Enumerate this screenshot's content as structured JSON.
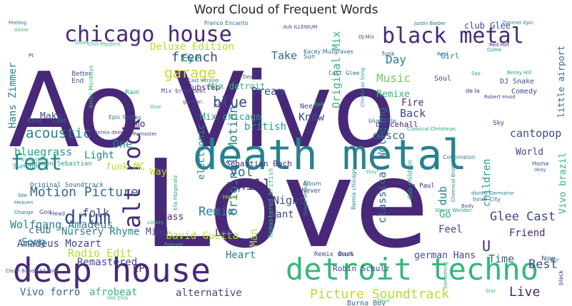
{
  "chart_data": {
    "type": "wordcloud",
    "title": "Word Cloud of Frequent Words",
    "palette": [
      "#440154",
      "#482878",
      "#3e4a89",
      "#31688e",
      "#26828e",
      "#1f9e89",
      "#35b779",
      "#6ece58",
      "#b5de2b",
      "#d2d62b"
    ],
    "words": [
      "Ao Vivo",
      "Love",
      "death metal",
      "deep house",
      "detroit techno",
      "chicago house",
      "black metal",
      "alt rock",
      "Motion Picture",
      "Picture Soundtrack",
      "acoustic",
      "feat",
      "Original Motion",
      "garage",
      "drum",
      "french",
      "chill",
      "Deluxe Edition",
      "Remix",
      "blue",
      "Vol",
      "Live",
      "Glee Cast",
      "Amadeus Mozart",
      "Wolfgang Amadeus",
      "bluegrass",
      "Music",
      "british",
      "disco",
      "classical Wolfgang",
      "U",
      "dub",
      "cantopop",
      "children",
      "Vivo brazil",
      "little airport",
      "Best",
      "Time",
      "Remastered",
      "Radio Edit",
      "David Guetta",
      "afrobeat",
      "alternative",
      "Vivo forro",
      "EP",
      "Hans Zimmer",
      "Mix detroit",
      "Original Mix",
      "Take",
      "Day",
      "Eye",
      "dubstep",
      "emo",
      "Make",
      "Light",
      "One",
      "Way",
      "funk MC",
      "Nursery Rhyme",
      "Mind",
      "folk",
      "club",
      "Song",
      "bass",
      "Heart",
      "Let",
      "Man",
      "Want",
      "Night",
      "Know",
      "Fire",
      "Back",
      "Feel",
      "Friend",
      "german Hans",
      "Go",
      "World",
      "Remixe",
      "Dream",
      "Sebastian Bach",
      "Robin Schulz",
      "Burna Boy",
      "club Glee",
      "Sun",
      "Soul",
      "Girl",
      "DJ Snake",
      "Comedy",
      "Mix chicago",
      "electronic",
      "Johann Sebastian",
      "Original Soundtrack",
      "Sean Paul",
      "Hot Chili",
      "dancehall",
      "Cast Glee",
      "Mix breakbeat",
      "Remastered british",
      "Remix drum",
      "Dark",
      "Inner City",
      "Ella Fitzgerald",
      "Summer",
      "Lost",
      "Beat",
      "Franco Encanto",
      "Kacey Musgraves",
      "Justin Bieber",
      "Zimmer Epic",
      "Feeling",
      "Alone",
      "Better",
      "End",
      "Rain",
      "Epic Scores",
      "Arctic Monkeys",
      "Cast Version",
      "Need",
      "Christmas Song",
      "blues Ella",
      "Classical Christmas",
      "Robert Hood",
      "Becky Hill",
      "Stevie Wonder",
      "Single Version",
      "Album",
      "Never",
      "Hold",
      "Remix chicago",
      "Chemical Brothers",
      "dub children",
      "CoComelon",
      "disney Germaine",
      "Clean Bandit",
      "Ed Solo",
      "God",
      "Head",
      "Change",
      "Heaven",
      "See",
      "black",
      "pov",
      "Now",
      "Good",
      "Chili Peppers",
      "Red Hot",
      "Real",
      "Come",
      "Sky",
      "okay",
      "Home",
      "Body",
      "Forever",
      "Lonely",
      "Everything",
      "Devil",
      "Side",
      "Call",
      "Give",
      "Fell",
      "Stay",
      "funk",
      "DJ Mix",
      "dub ILLENIUM",
      "Pt",
      "Dead",
      "german",
      "de la",
      "Say",
      "Remix deep",
      "Remaster",
      "Something",
      "Star"
    ]
  }
}
